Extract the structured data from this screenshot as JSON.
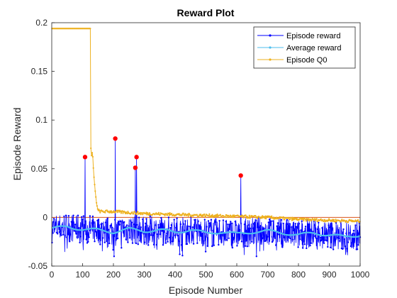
{
  "chart_data": {
    "type": "line",
    "title": "Reward Plot",
    "xlabel": "Episode Number",
    "ylabel": "Episode Reward",
    "xlim": [
      0,
      1000
    ],
    "ylim": [
      -0.05,
      0.2
    ],
    "xticks": [
      0,
      100,
      200,
      300,
      400,
      500,
      600,
      700,
      800,
      900,
      1000
    ],
    "yticks": [
      -0.05,
      0,
      0.05,
      0.1,
      0.15,
      0.2
    ],
    "ytick_labels": [
      "-0.05",
      "0",
      "0.05",
      "0.1",
      "0.15",
      "0.2"
    ],
    "grid": false,
    "legend_position": "top-right",
    "reference_line": {
      "y": 0,
      "color": "#d95319"
    },
    "series": [
      {
        "name": "Episode reward",
        "color": "#0000ff",
        "marker": "dot",
        "baseline_mean": -0.015,
        "noise_range": [
          -0.03,
          0.0
        ],
        "spikes": [
          {
            "x": 108,
            "y": 0.062
          },
          {
            "x": 206,
            "y": 0.081
          },
          {
            "x": 271,
            "y": 0.051
          },
          {
            "x": 275,
            "y": 0.062
          },
          {
            "x": 613,
            "y": 0.043
          }
        ]
      },
      {
        "name": "Average reward",
        "color": "#4dbeee",
        "marker": "dot",
        "x": [
          0,
          50,
          100,
          150,
          200,
          250,
          300,
          350,
          400,
          450,
          500,
          550,
          600,
          650,
          700,
          750,
          800,
          850,
          900,
          950,
          1000
        ],
        "values": [
          -0.011,
          -0.01,
          -0.012,
          -0.013,
          -0.015,
          -0.012,
          -0.014,
          -0.013,
          -0.015,
          -0.013,
          -0.016,
          -0.015,
          -0.017,
          -0.015,
          -0.014,
          -0.016,
          -0.018,
          -0.016,
          -0.018,
          -0.02,
          -0.018
        ]
      },
      {
        "name": "Episode Q0",
        "color": "#edb120",
        "marker": "dot",
        "x": [
          1,
          125,
          126,
          128,
          132,
          136,
          140,
          145,
          150,
          160,
          175,
          200,
          250,
          300,
          400,
          500,
          600,
          700,
          800,
          900,
          1000
        ],
        "values": [
          0.194,
          0.194,
          0.08,
          0.062,
          0.068,
          0.045,
          0.03,
          0.015,
          0.007,
          0.006,
          0.006,
          0.006,
          0.005,
          0.004,
          0.003,
          0.002,
          0.001,
          0.0,
          -0.002,
          -0.003,
          -0.004
        ]
      }
    ],
    "highlight_points": {
      "color": "#ff0000",
      "points": [
        {
          "x": 108,
          "y": 0.062
        },
        {
          "x": 206,
          "y": 0.081
        },
        {
          "x": 271,
          "y": 0.051
        },
        {
          "x": 275,
          "y": 0.062
        },
        {
          "x": 613,
          "y": 0.043
        }
      ]
    }
  }
}
